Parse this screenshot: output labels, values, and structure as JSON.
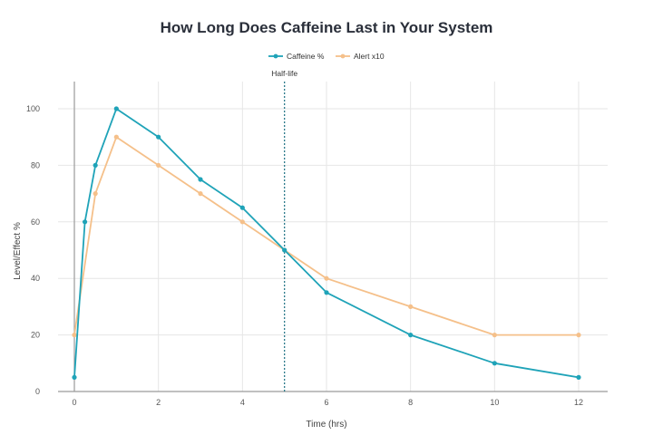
{
  "chart_data": {
    "type": "line",
    "title": "How Long Does Caffeine Last in Your System",
    "xlabel": "Time (hrs)",
    "ylabel": "Level/Effect %",
    "xlim": [
      0,
      12
    ],
    "ylim": [
      0,
      100
    ],
    "xticks": [
      0,
      2,
      4,
      6,
      8,
      10,
      12
    ],
    "yticks": [
      0,
      20,
      40,
      60,
      80,
      100
    ],
    "grid": true,
    "legend_position": "top-center",
    "series": [
      {
        "name": "Caffeine %",
        "color": "#1fa3b8",
        "x": [
          0,
          0.25,
          0.5,
          1,
          2,
          3,
          4,
          5,
          6,
          8,
          10,
          12
        ],
        "y": [
          5,
          60,
          80,
          100,
          90,
          75,
          65,
          50,
          35,
          20,
          10,
          5
        ]
      },
      {
        "name": "Alert x10",
        "color": "#f5c08a",
        "x": [
          0,
          0.5,
          1,
          2,
          3,
          4,
          5,
          6,
          8,
          10,
          12
        ],
        "y": [
          20,
          70,
          90,
          80,
          70,
          60,
          50,
          40,
          30,
          20,
          20
        ]
      }
    ],
    "annotations": [
      {
        "type": "vline",
        "x": 5,
        "label": "Half-life",
        "color": "#2c7a8a"
      }
    ]
  }
}
